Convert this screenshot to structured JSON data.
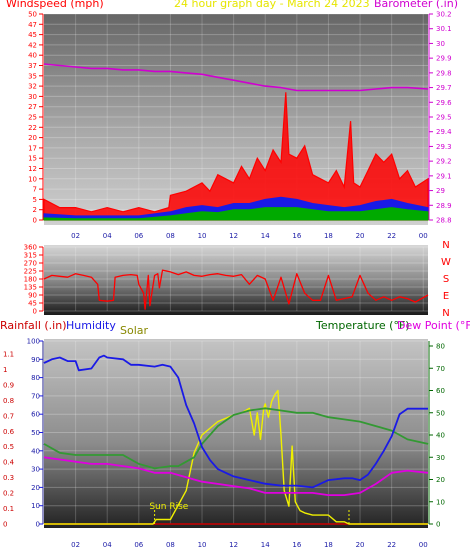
{
  "header": {
    "windspeed_label": "Windspeed (mph)",
    "title": "24 hour graph day - March 24 2023",
    "barometer_label": "Barometer (.in)"
  },
  "bottom_header": {
    "rainfall_label": "Rainfall (.in)",
    "humidity_label": "Humidity",
    "solar_label": "Solar",
    "temperature_label": "Temperature (°F)",
    "dewpoint_label": "Dew Point (°F)"
  },
  "colors": {
    "windspeed": "#ff0000",
    "gust": "#ff0000",
    "wind_avg_blue": "#1a1ae6",
    "wind_avg_green": "#00aa00",
    "barometer": "#d000d0",
    "direction": "#ff0000",
    "humidity": "#1a1ae6",
    "solar": "#f0f000",
    "temperature": "#339933",
    "dewpoint": "#e000e0",
    "rainfall": "#cc0000",
    "solar_label": "#888800",
    "title": "#e6e600",
    "temperature_label": "#006600"
  },
  "chart_data": [
    {
      "type": "line",
      "name": "wind-and-barometer",
      "x_ticks": [
        "02",
        "04",
        "06",
        "08",
        "10",
        "12",
        "14",
        "16",
        "18",
        "20",
        "22",
        "00"
      ],
      "x_tick_hours": [
        2,
        4,
        6,
        8,
        10,
        12,
        14,
        16,
        18,
        20,
        22,
        24
      ],
      "x_range": [
        0,
        24.3
      ],
      "ylim": [
        0,
        50
      ],
      "y_ticks": [
        "0",
        "2",
        "5",
        "7",
        "10",
        "12",
        "15",
        "17",
        "20",
        "22",
        "25",
        "27",
        "30",
        "32",
        "35",
        "37",
        "40",
        "42",
        "45",
        "47",
        "50"
      ],
      "y_tick_values": [
        0,
        2.5,
        5,
        7.5,
        10,
        12.5,
        15,
        17.5,
        20,
        22.5,
        25,
        27.5,
        30,
        32.5,
        35,
        37.5,
        40,
        42.5,
        45,
        47.5,
        50
      ],
      "y2lim": [
        28.8,
        30.2
      ],
      "y2_ticks": [
        "28.8",
        "28.9",
        "29",
        "29.1",
        "29.2",
        "29.3",
        "29.4",
        "29.5",
        "29.6",
        "29.7",
        "29.8",
        "29.9",
        "30",
        "30.1",
        "30.2"
      ],
      "y2_tick_values": [
        28.8,
        28.9,
        29.0,
        29.1,
        29.2,
        29.3,
        29.4,
        29.5,
        29.6,
        29.7,
        29.8,
        29.9,
        30.0,
        30.1,
        30.2
      ],
      "series": [
        {
          "name": "Barometer",
          "axis": "right",
          "x": [
            0,
            1,
            2,
            3,
            4,
            5,
            6,
            7,
            8,
            9,
            10,
            11,
            12,
            13,
            14,
            15,
            16,
            17,
            18,
            19,
            20,
            21,
            22,
            23,
            24.3
          ],
          "y": [
            29.86,
            29.85,
            29.84,
            29.83,
            29.83,
            29.82,
            29.82,
            29.81,
            29.81,
            29.8,
            29.79,
            29.77,
            29.75,
            29.73,
            29.71,
            29.7,
            29.68,
            29.68,
            29.68,
            29.68,
            29.68,
            29.69,
            29.7,
            29.7,
            29.69
          ]
        },
        {
          "name": "Wind gust",
          "axis": "left",
          "x": [
            0,
            1,
            2,
            3,
            4,
            5,
            6,
            7,
            7.9,
            8,
            9,
            10,
            10.5,
            11,
            12,
            12.5,
            13,
            13.5,
            14,
            14.5,
            15,
            15.3,
            15.5,
            16,
            16.5,
            17,
            17.5,
            18,
            18.5,
            19,
            19.4,
            19.6,
            20,
            20.5,
            21,
            21.5,
            22,
            22.5,
            23,
            23.5,
            24.3
          ],
          "y": [
            5,
            3,
            3,
            2,
            3,
            2,
            3,
            2,
            3,
            6,
            7,
            9,
            7,
            11,
            9,
            13,
            10,
            15,
            12,
            17,
            14,
            31,
            16,
            15,
            18,
            11,
            10,
            9,
            12,
            8,
            24,
            9,
            8,
            12,
            16,
            14,
            16,
            10,
            12,
            8,
            10
          ]
        },
        {
          "name": "Wind average",
          "axis": "left",
          "x": [
            0,
            2,
            4,
            6,
            8,
            9,
            10,
            11,
            12,
            13,
            14,
            15,
            16,
            17,
            18,
            19,
            20,
            21,
            22,
            23,
            24.3
          ],
          "y": [
            1.5,
            1,
            1,
            1,
            2,
            3,
            3.5,
            3,
            4,
            4,
            5,
            5.5,
            5,
            4,
            3.5,
            3,
            3.5,
            4.5,
            5,
            4,
            3
          ]
        },
        {
          "name": "Wind speed",
          "axis": "left",
          "x": [
            0,
            2,
            4,
            6,
            8,
            9,
            10,
            11,
            12,
            13,
            14,
            15,
            16,
            17,
            18,
            19,
            20,
            21,
            22,
            23,
            24.3
          ],
          "y": [
            0.5,
            0.3,
            0.3,
            0.3,
            1,
            1.5,
            2,
            1.8,
            2.5,
            2.5,
            3,
            3,
            3,
            2.5,
            2,
            2,
            2,
            2.5,
            3,
            2.5,
            2
          ]
        }
      ]
    },
    {
      "type": "line",
      "name": "wind-direction",
      "x_range": [
        0,
        24.3
      ],
      "ylim": [
        0,
        360
      ],
      "y_ticks": [
        "0",
        "45",
        "90",
        "135",
        "180",
        "225",
        "270",
        "315",
        "360"
      ],
      "y_tick_values": [
        0,
        45,
        90,
        135,
        180,
        225,
        270,
        315,
        360
      ],
      "right_labels": [
        "N",
        "W",
        "S",
        "E",
        "N"
      ],
      "right_label_values": [
        360,
        270,
        180,
        90,
        0
      ],
      "series": [
        {
          "name": "Wind direction",
          "x": [
            0,
            0.5,
            1,
            1.5,
            2,
            2.5,
            3,
            3.4,
            3.5,
            4,
            4.4,
            4.5,
            5,
            5.5,
            5.9,
            6,
            6.3,
            6.4,
            6.6,
            6.7,
            7,
            7.2,
            7.3,
            7.5,
            8,
            8.5,
            9,
            9.5,
            10,
            10.5,
            11,
            11.5,
            12,
            12.5,
            13,
            13.5,
            14,
            14.5,
            15,
            15.5,
            16,
            16.5,
            17,
            17.5,
            18,
            18.5,
            19,
            19.5,
            20,
            20.5,
            21,
            21.5,
            22,
            22.5,
            23,
            23.5,
            24.3
          ],
          "y": [
            180,
            200,
            195,
            190,
            210,
            200,
            190,
            150,
            60,
            55,
            60,
            190,
            200,
            205,
            200,
            150,
            100,
            10,
            200,
            30,
            200,
            210,
            130,
            230,
            220,
            205,
            220,
            200,
            195,
            205,
            210,
            200,
            195,
            205,
            150,
            200,
            180,
            60,
            190,
            40,
            210,
            100,
            60,
            60,
            200,
            60,
            70,
            80,
            200,
            100,
            60,
            80,
            60,
            80,
            70,
            50,
            90
          ]
        }
      ]
    },
    {
      "type": "line",
      "name": "rain-humidity-solar-temperature",
      "x_ticks": [
        "02",
        "04",
        "06",
        "08",
        "10",
        "12",
        "14",
        "16",
        "18",
        "20",
        "22",
        "00"
      ],
      "x_tick_hours": [
        2,
        4,
        6,
        8,
        10,
        12,
        14,
        16,
        18,
        20,
        22,
        24
      ],
      "x_range": [
        0,
        24.3
      ],
      "rain_ticks": [
        "0",
        "0.1",
        "0.2",
        "0.3",
        "0.4",
        "0.5",
        "0.6",
        "0.7",
        "0.8",
        "0.9",
        "1",
        "1.1"
      ],
      "rain_tick_values": [
        0,
        0.1,
        0.2,
        0.3,
        0.4,
        0.5,
        0.6,
        0.7,
        0.8,
        0.9,
        1.0,
        1.1
      ],
      "humidity_ticks": [
        "0",
        "10",
        "20",
        "30",
        "40",
        "50",
        "60",
        "70",
        "80",
        "90",
        "100"
      ],
      "humidity_tick_values": [
        0,
        10,
        20,
        30,
        40,
        50,
        60,
        70,
        80,
        90,
        100
      ],
      "temp_ticks": [
        "0",
        "10",
        "20",
        "30",
        "40",
        "50",
        "60",
        "70",
        "80"
      ],
      "temp_tick_values": [
        0,
        10,
        20,
        30,
        40,
        50,
        60,
        70,
        80
      ],
      "annotation": "Sun Rise",
      "series": [
        {
          "name": "Humidity",
          "axis": "humidity",
          "ylim": [
            0,
            100
          ],
          "x": [
            0,
            0.5,
            1,
            1.5,
            2,
            2.2,
            3,
            3.5,
            3.8,
            4,
            5,
            5.5,
            6,
            7,
            7.5,
            8,
            8.5,
            9,
            9.5,
            10,
            10.5,
            11,
            11.5,
            12,
            12.5,
            13,
            14,
            15,
            16,
            17,
            18,
            19,
            19.5,
            20,
            20.5,
            21,
            21.5,
            22,
            22.5,
            23,
            24.3
          ],
          "y": [
            88,
            90,
            91,
            89,
            89,
            84,
            85,
            91,
            92,
            91,
            90,
            87,
            87,
            86,
            87,
            86,
            80,
            65,
            55,
            42,
            35,
            30,
            28,
            26,
            25,
            24,
            22,
            21,
            21,
            20,
            24,
            25,
            25,
            24,
            27,
            33,
            40,
            48,
            60,
            63,
            63
          ]
        },
        {
          "name": "Temperature",
          "axis": "temperature",
          "ylim": [
            0,
            80
          ],
          "x": [
            0,
            1,
            2,
            3,
            4,
            5,
            6,
            7,
            8,
            8.5,
            9,
            9.5,
            10,
            11,
            12,
            13,
            14,
            15,
            16,
            17,
            18,
            19,
            20,
            21,
            22,
            23,
            24.3
          ],
          "y": [
            36,
            32,
            31,
            31,
            31,
            31,
            27,
            25,
            26,
            26,
            28,
            30,
            36,
            44,
            49,
            51,
            52,
            51,
            50,
            50,
            48,
            47,
            46,
            44,
            42,
            38,
            36
          ]
        },
        {
          "name": "Dew Point",
          "axis": "temperature",
          "ylim": [
            0,
            80
          ],
          "x": [
            0,
            1,
            2,
            3,
            4,
            5,
            6,
            7,
            8,
            9,
            10,
            11,
            12,
            13,
            14,
            15,
            16,
            17,
            18,
            19,
            20,
            21,
            22,
            23,
            24.3
          ],
          "y": [
            30,
            29,
            28,
            27,
            27,
            26,
            25,
            23,
            23,
            21,
            19,
            18,
            17,
            16,
            14,
            14,
            14,
            14,
            13,
            13,
            14,
            18,
            23,
            24,
            23
          ]
        },
        {
          "name": "Solar",
          "axis": "temperature",
          "ylim": [
            0,
            80
          ],
          "x": [
            0,
            6.9,
            7.0,
            7.1,
            8.0,
            9.0,
            9.5,
            10,
            11,
            12,
            12.5,
            13,
            13.3,
            13.5,
            13.7,
            13.9,
            14.0,
            14.2,
            14.4,
            14.6,
            14.8,
            15.0,
            15.2,
            15.5,
            15.7,
            15.9,
            16.2,
            16.5,
            17,
            18,
            18.5,
            19,
            19.3,
            24.3
          ],
          "y": [
            0,
            0,
            1,
            2,
            2,
            15,
            32,
            40,
            46,
            49,
            50,
            52,
            40,
            50,
            38,
            52,
            54,
            48,
            55,
            58,
            60,
            40,
            15,
            8,
            35,
            10,
            6,
            5,
            4,
            4,
            1,
            1,
            0,
            0
          ]
        },
        {
          "name": "Rainfall",
          "axis": "rain",
          "ylim": [
            0,
            1.1
          ],
          "x": [
            0,
            24.3
          ],
          "y": [
            0,
            0
          ]
        }
      ]
    }
  ]
}
